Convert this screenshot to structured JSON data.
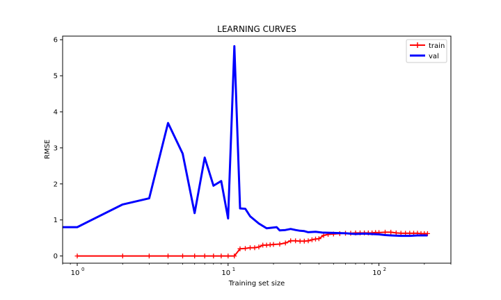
{
  "chart_data": {
    "type": "line",
    "title": "LEARNING CURVES",
    "xlabel": "Training set size",
    "ylabel": "RMSE",
    "xscale": "log",
    "xlim": [
      0.8,
      300
    ],
    "ylim": [
      -0.2,
      6.1
    ],
    "x_ticks": [
      1,
      10,
      100
    ],
    "x_tick_labels": [
      "10",
      "10",
      "10"
    ],
    "x_tick_exponents": [
      "0",
      "1",
      "2"
    ],
    "y_ticks": [
      0,
      1,
      2,
      3,
      4,
      5,
      6
    ],
    "y_tick_labels": [
      "0",
      "1",
      "2",
      "3",
      "4",
      "5",
      "6"
    ],
    "grid": false,
    "legend_position": "top-right",
    "series": [
      {
        "name": "train",
        "color": "#ff0000",
        "marker": "plus",
        "line_width": 2,
        "points": [
          [
            1,
            0
          ],
          [
            2,
            0
          ],
          [
            3,
            0
          ],
          [
            4,
            0
          ],
          [
            5,
            0
          ],
          [
            6,
            0
          ],
          [
            7,
            0
          ],
          [
            8,
            0
          ],
          [
            9,
            0
          ],
          [
            10,
            0
          ],
          [
            11,
            0
          ],
          [
            12,
            0.2
          ],
          [
            13,
            0.21
          ],
          [
            14,
            0.23
          ],
          [
            15,
            0.23
          ],
          [
            16,
            0.25
          ],
          [
            17,
            0.3
          ],
          [
            18,
            0.3
          ],
          [
            19,
            0.31
          ],
          [
            20,
            0.32
          ],
          [
            22,
            0.33
          ],
          [
            24,
            0.36
          ],
          [
            26,
            0.42
          ],
          [
            28,
            0.42
          ],
          [
            30,
            0.41
          ],
          [
            32,
            0.41
          ],
          [
            34,
            0.42
          ],
          [
            36,
            0.45
          ],
          [
            38,
            0.47
          ],
          [
            40,
            0.48
          ],
          [
            43,
            0.57
          ],
          [
            46,
            0.6
          ],
          [
            50,
            0.61
          ],
          [
            55,
            0.62
          ],
          [
            60,
            0.63
          ],
          [
            65,
            0.63
          ],
          [
            70,
            0.64
          ],
          [
            75,
            0.64
          ],
          [
            80,
            0.64
          ],
          [
            85,
            0.64
          ],
          [
            90,
            0.64
          ],
          [
            95,
            0.65
          ],
          [
            100,
            0.65
          ],
          [
            110,
            0.66
          ],
          [
            120,
            0.66
          ],
          [
            130,
            0.64
          ],
          [
            140,
            0.63
          ],
          [
            150,
            0.63
          ],
          [
            160,
            0.63
          ],
          [
            170,
            0.63
          ],
          [
            180,
            0.63
          ],
          [
            190,
            0.62
          ],
          [
            200,
            0.62
          ],
          [
            210,
            0.62
          ]
        ]
      },
      {
        "name": "val",
        "color": "#0000ff",
        "marker": "none",
        "line_width": 3,
        "points": [
          [
            0.8,
            0.8
          ],
          [
            1,
            0.8
          ],
          [
            2,
            1.43
          ],
          [
            3,
            1.6
          ],
          [
            4,
            3.69
          ],
          [
            5,
            2.84
          ],
          [
            6,
            1.19
          ],
          [
            7,
            2.73
          ],
          [
            8,
            1.95
          ],
          [
            9,
            2.08
          ],
          [
            10,
            1.04
          ],
          [
            11,
            5.82
          ],
          [
            12,
            1.32
          ],
          [
            13,
            1.31
          ],
          [
            14,
            1.1
          ],
          [
            16,
            0.9
          ],
          [
            18,
            0.77
          ],
          [
            21,
            0.8
          ],
          [
            22,
            0.71
          ],
          [
            24,
            0.72
          ],
          [
            26,
            0.75
          ],
          [
            28,
            0.72
          ],
          [
            30,
            0.7
          ],
          [
            32,
            0.69
          ],
          [
            34,
            0.66
          ],
          [
            38,
            0.67
          ],
          [
            42,
            0.65
          ],
          [
            50,
            0.64
          ],
          [
            60,
            0.63
          ],
          [
            70,
            0.61
          ],
          [
            80,
            0.62
          ],
          [
            90,
            0.61
          ],
          [
            100,
            0.6
          ],
          [
            110,
            0.58
          ],
          [
            120,
            0.57
          ],
          [
            140,
            0.56
          ],
          [
            160,
            0.56
          ],
          [
            180,
            0.57
          ],
          [
            200,
            0.57
          ],
          [
            210,
            0.57
          ]
        ]
      }
    ]
  }
}
